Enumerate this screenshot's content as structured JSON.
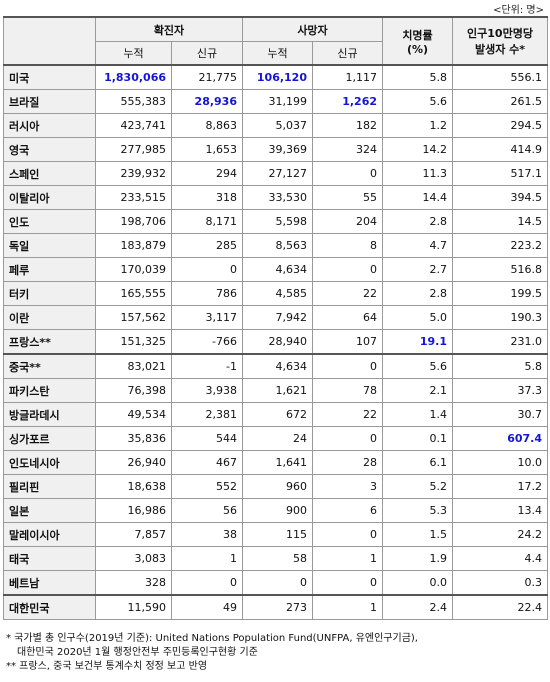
{
  "unit": "<단위: 명>",
  "header": {
    "confirmed": "확진자",
    "deaths": "사망자",
    "fatality": "치명률",
    "fatality_unit": "(%)",
    "per_100k_line1": "인구10만명당",
    "per_100k_line2": "발생자 수*",
    "cumulative": "누적",
    "new": "신규"
  },
  "rows": [
    {
      "country": "미국",
      "conf_cum": "1,830,066",
      "conf_new": "21,775",
      "death_cum": "106,120",
      "death_new": "1,117",
      "cfr": "5.8",
      "per100k": "556.1"
    },
    {
      "country": "브라질",
      "conf_cum": "555,383",
      "conf_new": "28,936",
      "death_cum": "31,199",
      "death_new": "1,262",
      "cfr": "5.6",
      "per100k": "261.5"
    },
    {
      "country": "러시아",
      "conf_cum": "423,741",
      "conf_new": "8,863",
      "death_cum": "5,037",
      "death_new": "182",
      "cfr": "1.2",
      "per100k": "294.5"
    },
    {
      "country": "영국",
      "conf_cum": "277,985",
      "conf_new": "1,653",
      "death_cum": "39,369",
      "death_new": "324",
      "cfr": "14.2",
      "per100k": "414.9"
    },
    {
      "country": "스페인",
      "conf_cum": "239,932",
      "conf_new": "294",
      "death_cum": "27,127",
      "death_new": "0",
      "cfr": "11.3",
      "per100k": "517.1"
    },
    {
      "country": "이탈리아",
      "conf_cum": "233,515",
      "conf_new": "318",
      "death_cum": "33,530",
      "death_new": "55",
      "cfr": "14.4",
      "per100k": "394.5"
    },
    {
      "country": "인도",
      "conf_cum": "198,706",
      "conf_new": "8,171",
      "death_cum": "5,598",
      "death_new": "204",
      "cfr": "2.8",
      "per100k": "14.5"
    },
    {
      "country": "독일",
      "conf_cum": "183,879",
      "conf_new": "285",
      "death_cum": "8,563",
      "death_new": "8",
      "cfr": "4.7",
      "per100k": "223.2"
    },
    {
      "country": "페루",
      "conf_cum": "170,039",
      "conf_new": "0",
      "death_cum": "4,634",
      "death_new": "0",
      "cfr": "2.7",
      "per100k": "516.8"
    },
    {
      "country": "터키",
      "conf_cum": "165,555",
      "conf_new": "786",
      "death_cum": "4,585",
      "death_new": "22",
      "cfr": "2.8",
      "per100k": "199.5"
    },
    {
      "country": "이란",
      "conf_cum": "157,562",
      "conf_new": "3,117",
      "death_cum": "7,942",
      "death_new": "64",
      "cfr": "5.0",
      "per100k": "190.3"
    },
    {
      "country": "프랑스**",
      "conf_cum": "151,325",
      "conf_new": "-766",
      "death_cum": "28,940",
      "death_new": "107",
      "cfr": "19.1",
      "per100k": "231.0"
    },
    {
      "country": "중국**",
      "conf_cum": "83,021",
      "conf_new": "-1",
      "death_cum": "4,634",
      "death_new": "0",
      "cfr": "5.6",
      "per100k": "5.8"
    },
    {
      "country": "파키스탄",
      "conf_cum": "76,398",
      "conf_new": "3,938",
      "death_cum": "1,621",
      "death_new": "78",
      "cfr": "2.1",
      "per100k": "37.3"
    },
    {
      "country": "방글라데시",
      "conf_cum": "49,534",
      "conf_new": "2,381",
      "death_cum": "672",
      "death_new": "22",
      "cfr": "1.4",
      "per100k": "30.7"
    },
    {
      "country": "싱가포르",
      "conf_cum": "35,836",
      "conf_new": "544",
      "death_cum": "24",
      "death_new": "0",
      "cfr": "0.1",
      "per100k": "607.4"
    },
    {
      "country": "인도네시아",
      "conf_cum": "26,940",
      "conf_new": "467",
      "death_cum": "1,641",
      "death_new": "28",
      "cfr": "6.1",
      "per100k": "10.0"
    },
    {
      "country": "필리핀",
      "conf_cum": "18,638",
      "conf_new": "552",
      "death_cum": "960",
      "death_new": "3",
      "cfr": "5.2",
      "per100k": "17.2"
    },
    {
      "country": "일본",
      "conf_cum": "16,986",
      "conf_new": "56",
      "death_cum": "900",
      "death_new": "6",
      "cfr": "5.3",
      "per100k": "13.4"
    },
    {
      "country": "말레이시아",
      "conf_cum": "7,857",
      "conf_new": "38",
      "death_cum": "115",
      "death_new": "0",
      "cfr": "1.5",
      "per100k": "24.2"
    },
    {
      "country": "태국",
      "conf_cum": "3,083",
      "conf_new": "1",
      "death_cum": "58",
      "death_new": "1",
      "cfr": "1.9",
      "per100k": "4.4"
    },
    {
      "country": "베트남",
      "conf_cum": "328",
      "conf_new": "0",
      "death_cum": "0",
      "death_new": "0",
      "cfr": "0.0",
      "per100k": "0.3"
    },
    {
      "country": "대한민국",
      "conf_cum": "11,590",
      "conf_new": "49",
      "death_cum": "273",
      "death_new": "1",
      "cfr": "2.4",
      "per100k": "22.4"
    }
  ],
  "notes": {
    "note1_line1": "* 국가별 총 인구수(2019년 기준): United Nations Population Fund(UNFPA, 유엔인구기금),",
    "note1_line2": "대한민국 2020년 1월 행정안전부 주민등록인구현황 기준",
    "note2": "** 프랑스, 중국 보건부 통계수치 정정 보고 반영"
  },
  "highlight_color": "#1414d8"
}
